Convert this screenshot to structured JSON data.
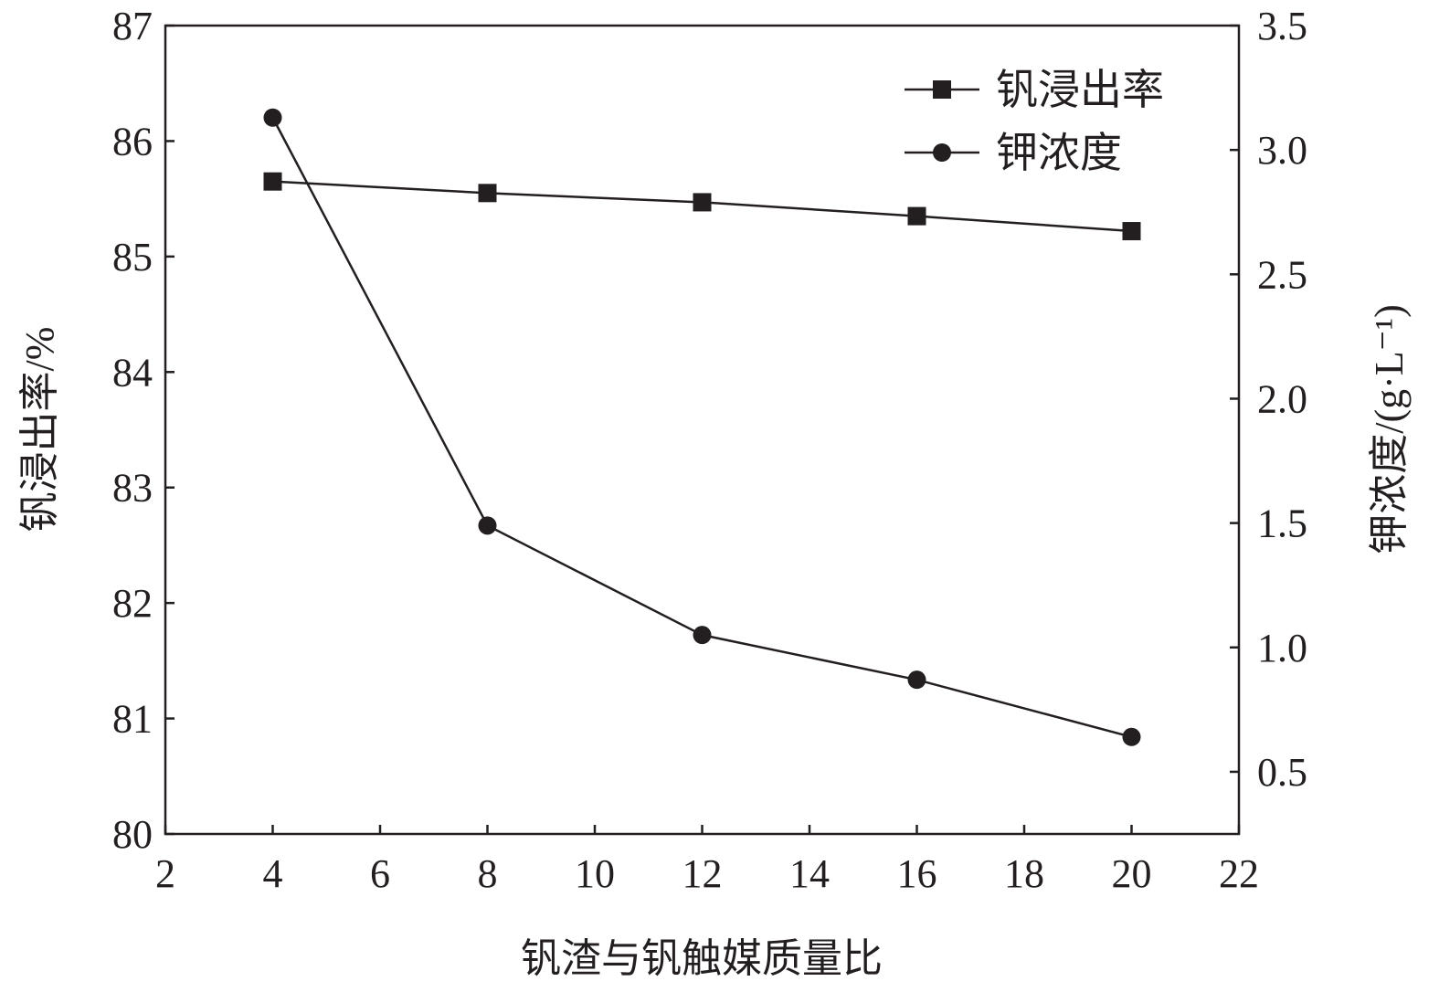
{
  "chart_data": {
    "type": "line",
    "xlabel": "钒渣与钒触媒质量比",
    "ylabel": "钒浸出率/%",
    "y2label": "钾浓度/(g·L⁻¹)",
    "xlim": [
      2,
      22
    ],
    "ylim": [
      80,
      87
    ],
    "y2lim": [
      0.25,
      3.5
    ],
    "xticks": [
      "2",
      "4",
      "6",
      "8",
      "10",
      "12",
      "14",
      "16",
      "18",
      "20",
      "22"
    ],
    "yticks": [
      "80",
      "81",
      "82",
      "83",
      "84",
      "85",
      "86",
      "87"
    ],
    "y2ticks": [
      "0.5",
      "1.0",
      "1.5",
      "2.0",
      "2.5",
      "3.0",
      "3.5"
    ],
    "grid": false,
    "legend_position": "top-right",
    "x": [
      4,
      8,
      12,
      16,
      20
    ],
    "series": [
      {
        "name": "钒浸出率",
        "axis": "left",
        "marker": "square",
        "values": [
          85.65,
          85.55,
          85.47,
          85.35,
          85.22
        ]
      },
      {
        "name": "钾浓度",
        "axis": "right",
        "marker": "circle",
        "values": [
          3.13,
          1.49,
          1.05,
          0.87,
          0.64
        ]
      }
    ],
    "color": "#231f20"
  }
}
